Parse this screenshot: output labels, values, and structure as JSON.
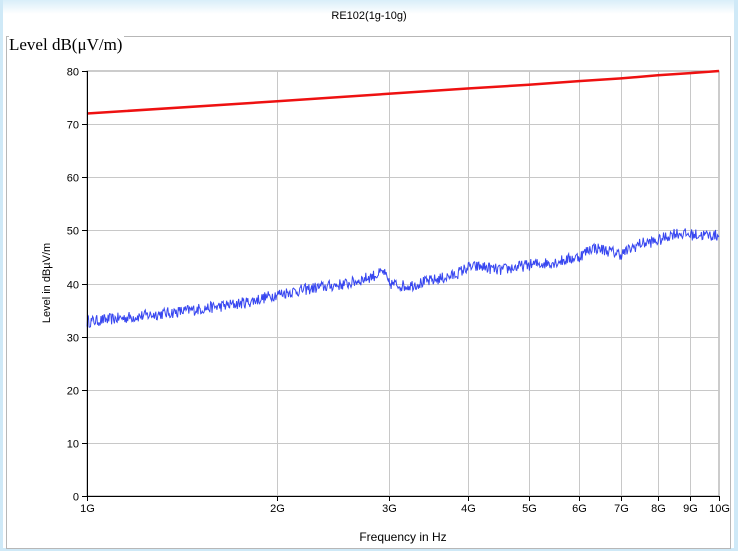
{
  "header": {
    "title": "RE102(1g-10g)",
    "units_label": "Level dB(μV/m)"
  },
  "chart_data": {
    "type": "line",
    "title": "RE102(1g-10g)",
    "xlabel": "Frequency in Hz",
    "ylabel": "Level in dBµV/m",
    "x_scale": "log",
    "xlim": [
      1000000000,
      10000000000
    ],
    "ylim": [
      0,
      80
    ],
    "x_ticks": [
      {
        "value": 1000000000,
        "label": "1G"
      },
      {
        "value": 2000000000,
        "label": "2G"
      },
      {
        "value": 3000000000,
        "label": "3G"
      },
      {
        "value": 4000000000,
        "label": "4G"
      },
      {
        "value": 5000000000,
        "label": "5G"
      },
      {
        "value": 6000000000,
        "label": "6G"
      },
      {
        "value": 7000000000,
        "label": "7G"
      },
      {
        "value": 8000000000,
        "label": "8G"
      },
      {
        "value": 9000000000,
        "label": "9G"
      },
      {
        "value": 10000000000,
        "label": "10G"
      }
    ],
    "y_ticks": [
      0,
      10,
      20,
      30,
      40,
      50,
      60,
      70,
      80
    ],
    "grid": true,
    "series": [
      {
        "color": "#ee1111",
        "x": [
          1000000000,
          2000000000,
          3000000000,
          4000000000,
          5000000000,
          6000000000,
          7000000000,
          8000000000,
          9000000000,
          10000000000
        ],
        "y": [
          72,
          74.3,
          75.7,
          76.7,
          77.4,
          78.1,
          78.6,
          79.2,
          79.6,
          80
        ]
      },
      {
        "color": "#2233ee",
        "x": [
          1000000000,
          1200000000,
          1400000000,
          1600000000,
          1800000000,
          2000000000,
          2300000000,
          2600000000,
          2900000000,
          2950000000,
          3000000000,
          3200000000,
          3500000000,
          3800000000,
          4000000000,
          4200000000,
          4500000000,
          5000000000,
          5500000000,
          6000000000,
          6300000000,
          6600000000,
          7000000000,
          7500000000,
          8000000000,
          8500000000,
          9000000000,
          10000000000
        ],
        "y": [
          32.8,
          33.8,
          34.7,
          35.6,
          36.5,
          38.0,
          39.2,
          40.0,
          41.8,
          42.2,
          40.0,
          39.5,
          40.5,
          41.5,
          43.0,
          43.2,
          42.5,
          43.5,
          44.0,
          45.0,
          46.8,
          46.3,
          45.5,
          47.5,
          48.0,
          49.5,
          49.2,
          49.0
        ]
      }
    ]
  }
}
